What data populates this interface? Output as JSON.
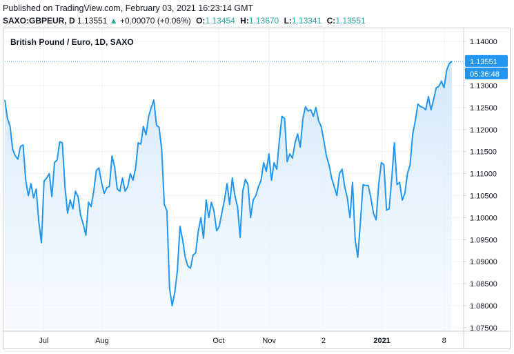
{
  "header": {
    "published": "Published on TradingView.com, February 03, 2021 16:23:14 GMT",
    "symbol": "SAXO:GBPEUR, D",
    "last": "1.13551",
    "change_arrow": "▲",
    "change": "+0.00070 (+0.06%)",
    "o_label": "O:",
    "o_value": "1.13454",
    "h_label": "H:",
    "h_value": "1.13670",
    "l_label": "L:",
    "l_value": "1.13341",
    "c_label": "C:",
    "c_value": "1.13551"
  },
  "colors": {
    "line": "#2196f3",
    "fill_top": "#cfe5fb",
    "fill_bottom": "#f3f8fe",
    "grid": "#eef0f3",
    "badge": "#2196f3",
    "up": "#26a69a"
  },
  "chart_data": {
    "type": "area",
    "title": "British Pound / Euro, 1D, SAXO",
    "last_price_label": "1.13551",
    "countdown_label": "05:36:48",
    "ylim": [
      1.0742,
      1.143
    ],
    "y_ticks": [
      "1.14000",
      "1.13500",
      "1.13000",
      "1.12500",
      "1.12000",
      "1.11500",
      "1.11000",
      "1.10500",
      "1.10000",
      "1.09500",
      "1.09000",
      "1.08500",
      "1.08000",
      "1.07500"
    ],
    "y_tick_values": [
      1.14,
      1.135,
      1.13,
      1.125,
      1.12,
      1.115,
      1.11,
      1.105,
      1.1,
      1.095,
      1.09,
      1.085,
      1.08,
      1.075
    ],
    "x_ticks": [
      {
        "label": "Jul",
        "index": 10,
        "bold": false
      },
      {
        "label": "Aug",
        "index": 25,
        "bold": false
      },
      {
        "label": "Oct",
        "index": 55,
        "bold": false
      },
      {
        "label": "Nov",
        "index": 68,
        "bold": false
      },
      {
        "label": "2",
        "index": 82,
        "bold": false
      },
      {
        "label": "2021",
        "index": 97,
        "bold": true
      },
      {
        "label": "8",
        "index": 113,
        "bold": false
      }
    ],
    "index_range": [
      0,
      115
    ],
    "points": [
      [
        0,
        1.1267
      ],
      [
        1,
        1.1225
      ],
      [
        2,
        1.1208
      ],
      [
        3,
        1.1155
      ],
      [
        4,
        1.114
      ],
      [
        5,
        1.1133
      ],
      [
        6,
        1.1162
      ],
      [
        7,
        1.1165
      ],
      [
        8,
        1.1085
      ],
      [
        9,
        1.105
      ],
      [
        10,
        1.1077
      ],
      [
        11,
        1.1045
      ],
      [
        12,
        1.1065
      ],
      [
        13,
        1.099
      ],
      [
        14,
        1.0943
      ],
      [
        15,
        1.1083
      ],
      [
        16,
        1.109
      ],
      [
        17,
        1.11
      ],
      [
        18,
        1.1048
      ],
      [
        19,
        1.1125
      ],
      [
        20,
        1.1131
      ],
      [
        21,
        1.1172
      ],
      [
        22,
        1.117
      ],
      [
        23,
        1.107
      ],
      [
        24,
        1.101
      ],
      [
        25,
        1.104
      ],
      [
        26,
        1.102
      ],
      [
        27,
        1.106
      ],
      [
        28,
        1.1048
      ],
      [
        29,
        1.1005
      ],
      [
        30,
        1.0985
      ],
      [
        31,
        1.096
      ],
      [
        32,
        1.1035
      ],
      [
        33,
        1.1025
      ],
      [
        34,
        1.106
      ],
      [
        35,
        1.1107
      ],
      [
        36,
        1.1113
      ],
      [
        37,
        1.108
      ],
      [
        38,
        1.1055
      ],
      [
        39,
        1.1068
      ],
      [
        40,
        1.1071
      ],
      [
        41,
        1.114
      ],
      [
        42,
        1.1115
      ],
      [
        43,
        1.1065
      ],
      [
        44,
        1.106
      ],
      [
        45,
        1.109
      ],
      [
        46,
        1.106
      ],
      [
        47,
        1.107
      ],
      [
        48,
        1.11
      ],
      [
        49,
        1.1085
      ],
      [
        50,
        1.1112
      ],
      [
        51,
        1.117
      ],
      [
        52,
        1.1167
      ],
      [
        53,
        1.1207
      ],
      [
        54,
        1.1188
      ],
      [
        55,
        1.123
      ],
      [
        56,
        1.125
      ],
      [
        57,
        1.1267
      ],
      [
        58,
        1.121
      ],
      [
        59,
        1.1205
      ],
      [
        60,
        1.1155
      ],
      [
        61,
        1.103
      ],
      [
        62,
        1.1015
      ],
      [
        63,
        1.084
      ],
      [
        64,
        1.08
      ],
      [
        65,
        1.083
      ],
      [
        66,
        1.088
      ],
      [
        67,
        1.098
      ],
      [
        68,
        1.095
      ],
      [
        69,
        1.091
      ],
      [
        70,
        1.089
      ],
      [
        71,
        1.0885
      ],
      [
        72,
        1.0915
      ],
      [
        73,
        1.092
      ],
      [
        74,
        1.097
      ],
      [
        75,
        1.1
      ],
      [
        76,
        1.0953
      ],
      [
        77,
        1.104
      ],
      [
        78,
        1.1
      ],
      [
        79,
        1.1035
      ],
      [
        80,
        1.1015
      ],
      [
        81,
        1.097
      ],
      [
        82,
        1.098
      ],
      [
        83,
        1.101
      ],
      [
        84,
        1.104
      ],
      [
        85,
        1.1077
      ],
      [
        86,
        1.103
      ],
      [
        87,
        1.109
      ],
      [
        88,
        1.105
      ],
      [
        89,
        1.1025
      ],
      [
        90,
        1.0955
      ],
      [
        91,
        1.106
      ],
      [
        92,
        1.1087
      ],
      [
        93,
        1.1075
      ],
      [
        94,
        1.1
      ],
      [
        95,
        1.104
      ],
      [
        96,
        1.105
      ],
      [
        97,
        1.107
      ],
      [
        98,
        1.1085
      ],
      [
        99,
        1.1125
      ],
      [
        100,
        1.1105
      ],
      [
        101,
        1.1145
      ],
      [
        102,
        1.1085
      ],
      [
        103,
        1.1125
      ],
      [
        104,
        1.111
      ],
      [
        105,
        1.1175
      ],
      [
        106,
        1.123
      ],
      [
        107,
        1.1225
      ],
      [
        108,
        1.1127
      ],
      [
        109,
        1.1145
      ],
      [
        110,
        1.1135
      ],
      [
        111,
        1.117
      ],
      [
        112,
        1.119
      ],
      [
        113,
        1.116
      ],
      [
        114,
        1.1225
      ],
      [
        115,
        1.1252
      ],
      [
        116,
        1.1242
      ],
      [
        117,
        1.1245
      ],
      [
        118,
        1.123
      ],
      [
        119,
        1.125
      ],
      [
        120,
        1.122
      ],
      [
        121,
        1.1207
      ],
      [
        122,
        1.1175
      ],
      [
        123,
        1.114
      ],
      [
        124,
        1.112
      ],
      [
        125,
        1.109
      ],
      [
        126,
        1.107
      ],
      [
        127,
        1.105
      ],
      [
        128,
        1.11
      ],
      [
        129,
        1.111
      ],
      [
        130,
        1.107
      ],
      [
        131,
        1.1045
      ],
      [
        132,
        1.1
      ],
      [
        133,
        1.108
      ],
      [
        134,
        1.095
      ],
      [
        135,
        1.091
      ],
      [
        136,
        1.099
      ],
      [
        137,
        1.1075
      ],
      [
        138,
        1.1073
      ],
      [
        139,
        1.1073
      ],
      [
        140,
        1.1045
      ],
      [
        141,
        1.101
      ],
      [
        142,
        1.0995
      ],
      [
        143,
        1.1075
      ],
      [
        144,
        1.1125
      ],
      [
        145,
        1.112
      ],
      [
        146,
        1.1017
      ],
      [
        147,
        1.102
      ],
      [
        148,
        1.109
      ],
      [
        149,
        1.117
      ],
      [
        150,
        1.1075
      ],
      [
        151,
        1.108
      ],
      [
        152,
        1.104
      ],
      [
        153,
        1.1055
      ],
      [
        154,
        1.11
      ],
      [
        155,
        1.112
      ],
      [
        156,
        1.119
      ],
      [
        157,
        1.122
      ],
      [
        158,
        1.1258
      ],
      [
        159,
        1.1252
      ],
      [
        160,
        1.125
      ],
      [
        161,
        1.1245
      ],
      [
        162,
        1.1275
      ],
      [
        163,
        1.1245
      ],
      [
        164,
        1.1268
      ],
      [
        165,
        1.1295
      ],
      [
        166,
        1.1298
      ],
      [
        167,
        1.131
      ],
      [
        168,
        1.1295
      ],
      [
        169,
        1.1335
      ],
      [
        170,
        1.135
      ],
      [
        171,
        1.1355
      ]
    ]
  }
}
